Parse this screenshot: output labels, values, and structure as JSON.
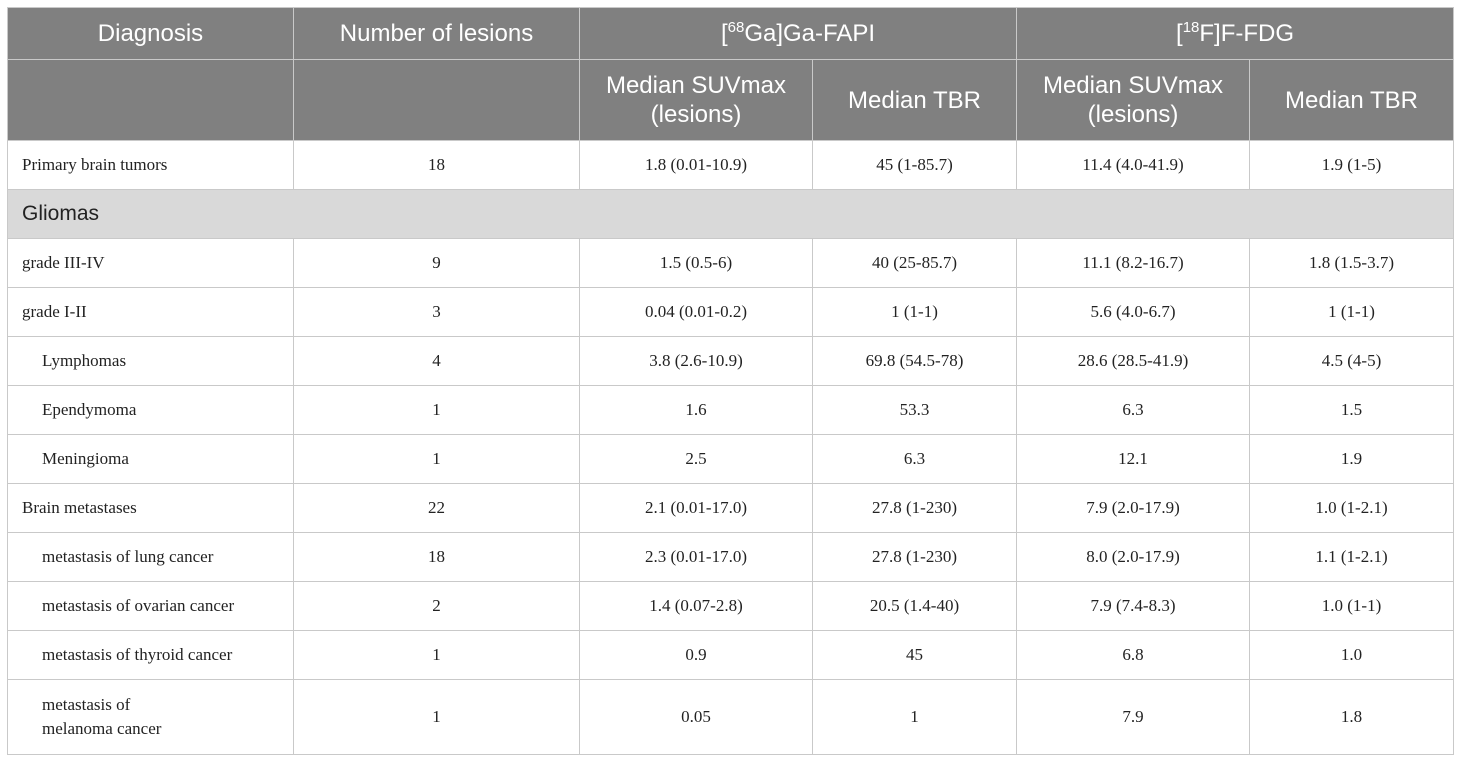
{
  "header": {
    "diagnosis": "Diagnosis",
    "number_of_lesions": "Number of lesions",
    "fapi": {
      "prefix": "[",
      "sup": "68",
      "suffix": "Ga]Ga-FAPI"
    },
    "fdg": {
      "prefix": "[",
      "sup": "18",
      "suffix": "F]F-FDG"
    },
    "sub": {
      "fapi_suvmax": "Median SUVmax (lesions)",
      "fapi_tbr": "Median TBR",
      "fdg_suvmax": "Median SUVmax (lesions)",
      "fdg_tbr": "Median TBR"
    }
  },
  "rows": [
    {
      "diagnosis": "Primary brain tumors",
      "lesions": "18",
      "fapi_suvmax": "1.8 (0.01-10.9)",
      "fapi_tbr": "45 (1-85.7)",
      "fdg_suvmax": "11.4 (4.0-41.9)",
      "fdg_tbr": "1.9 (1-5)"
    },
    {
      "section": "Gliomas"
    },
    {
      "diagnosis": "grade III-IV",
      "lesions": "9",
      "fapi_suvmax": "1.5 (0.5-6)",
      "fapi_tbr": "40 (25-85.7)",
      "fdg_suvmax": "11.1 (8.2-16.7)",
      "fdg_tbr": "1.8 (1.5-3.7)"
    },
    {
      "diagnosis": "grade I-II",
      "lesions": "3",
      "fapi_suvmax": "0.04 (0.01-0.2)",
      "fapi_tbr": "1 (1-1)",
      "fdg_suvmax": "5.6 (4.0-6.7)",
      "fdg_tbr": "1 (1-1)"
    },
    {
      "diagnosis": "Lymphomas",
      "indent": true,
      "lesions": "4",
      "fapi_suvmax": "3.8 (2.6-10.9)",
      "fapi_tbr": "69.8 (54.5-78)",
      "fdg_suvmax": "28.6 (28.5-41.9)",
      "fdg_tbr": "4.5 (4-5)"
    },
    {
      "diagnosis": "Ependymoma",
      "indent": true,
      "lesions": "1",
      "fapi_suvmax": "1.6",
      "fapi_tbr": "53.3",
      "fdg_suvmax": "6.3",
      "fdg_tbr": "1.5"
    },
    {
      "diagnosis": "Meningioma",
      "indent": true,
      "lesions": "1",
      "fapi_suvmax": "2.5",
      "fapi_tbr": "6.3",
      "fdg_suvmax": "12.1",
      "fdg_tbr": "1.9"
    },
    {
      "diagnosis": "Brain metastases",
      "lesions": "22",
      "fapi_suvmax": "2.1 (0.01-17.0)",
      "fapi_tbr": "27.8 (1-230)",
      "fdg_suvmax": "7.9 (2.0-17.9)",
      "fdg_tbr": "1.0 (1-2.1)"
    },
    {
      "diagnosis": "metastasis of lung cancer",
      "indent": true,
      "lesions": "18",
      "fapi_suvmax": "2.3 (0.01-17.0)",
      "fapi_tbr": "27.8 (1-230)",
      "fdg_suvmax": "8.0 (2.0-17.9)",
      "fdg_tbr": "1.1 (1-2.1)"
    },
    {
      "diagnosis": "metastasis of ovarian cancer",
      "indent": true,
      "lesions": "2",
      "fapi_suvmax": "1.4 (0.07-2.8)",
      "fapi_tbr": "20.5 (1.4-40)",
      "fdg_suvmax": "7.9 (7.4-8.3)",
      "fdg_tbr": "1.0 (1-1)"
    },
    {
      "diagnosis": "metastasis of thyroid cancer",
      "indent": true,
      "lesions": "1",
      "fapi_suvmax": "0.9",
      "fapi_tbr": "45",
      "fdg_suvmax": "6.8",
      "fdg_tbr": "1.0"
    },
    {
      "diagnosis_lines": [
        "metastasis of",
        "melanoma cancer"
      ],
      "indent": true,
      "tall": true,
      "lesions": "1",
      "fapi_suvmax": "0.05",
      "fapi_tbr": "1",
      "fdg_suvmax": "7.9",
      "fdg_tbr": "1.8"
    }
  ]
}
